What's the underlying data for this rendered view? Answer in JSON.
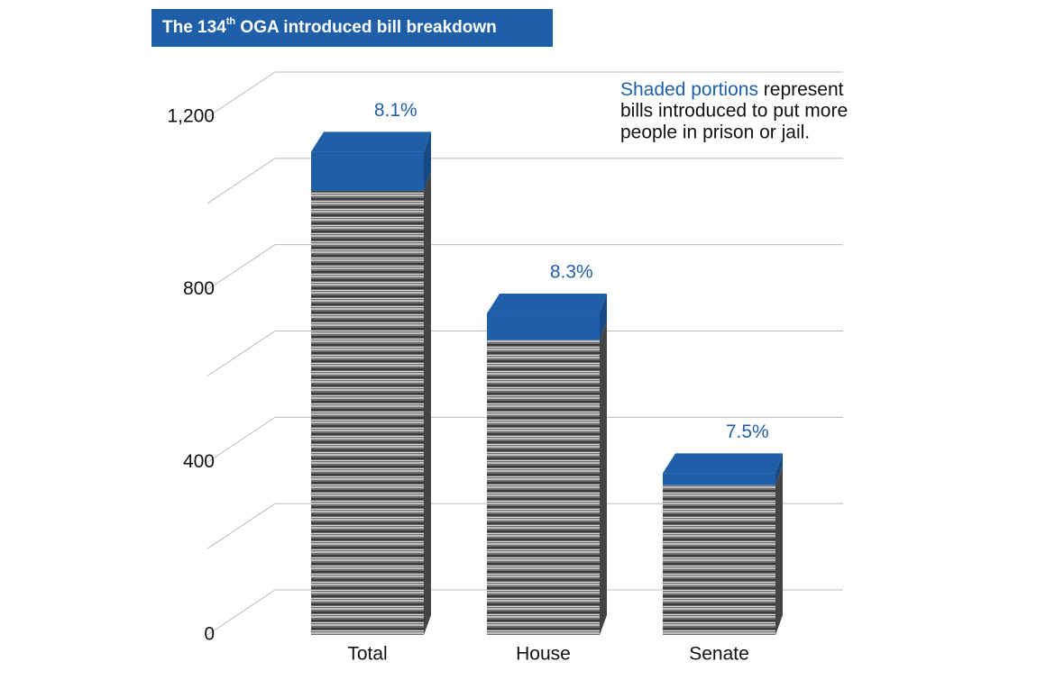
{
  "chart_data": {
    "type": "stacked-bar-3d",
    "title": {
      "main": "The 134",
      "sup": "th",
      "rest": " OGA introduced bill breakdown"
    },
    "categories": [
      "Total",
      "House",
      "Senate"
    ],
    "series": [
      {
        "color": "#8a8a8a",
        "values": [
          1029,
          683,
          347
        ]
      },
      {
        "color": "#1f5fa8",
        "values": [
          91,
          62,
          28
        ]
      }
    ],
    "share_labels": [
      "8.1%",
      "8.3%",
      "7.5%"
    ],
    "note": {
      "highlight": "Shaded portions",
      "lines": [
        " represent",
        "bills introduced to put more",
        "people in prison or jail."
      ]
    },
    "ylim": [
      0,
      1200
    ],
    "yticks": [
      0,
      400,
      800,
      {
        "value": 1200,
        "label": "1,200"
      }
    ],
    "minor_yticks": [
      200,
      600,
      1000
    ],
    "grid": true
  }
}
